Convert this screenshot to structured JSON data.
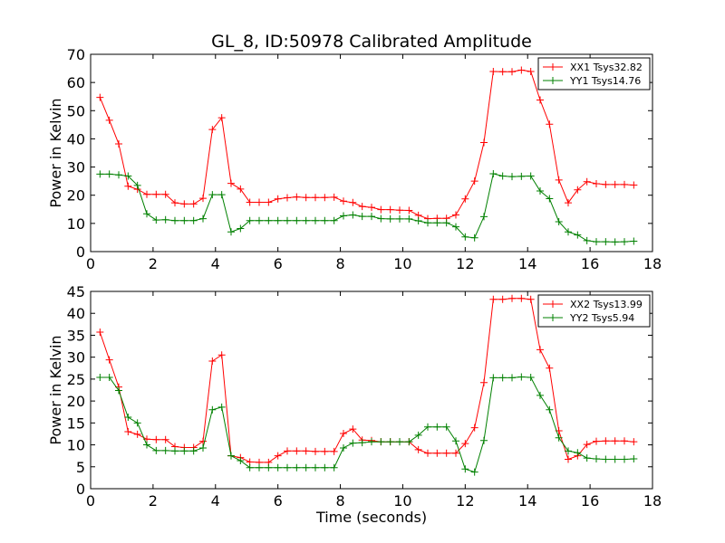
{
  "title": "GL_8, ID:50978 Calibrated Amplitude",
  "chart_data": [
    {
      "type": "line",
      "ylabel": "Power in Kelvin",
      "xlabel": "",
      "xlim": [
        0,
        18
      ],
      "ylim": [
        0,
        70
      ],
      "xticks": [
        "0",
        "2",
        "4",
        "6",
        "8",
        "10",
        "12",
        "14",
        "16",
        "18"
      ],
      "yticks": [
        "0",
        "10",
        "20",
        "30",
        "40",
        "50",
        "60",
        "70"
      ],
      "legend_position": "top-right",
      "x": [
        0.3,
        0.6,
        0.9,
        1.2,
        1.5,
        1.8,
        2.1,
        2.4,
        2.7,
        3.0,
        3.3,
        3.6,
        3.9,
        4.2,
        4.5,
        4.8,
        5.1,
        5.4,
        5.7,
        6.0,
        6.3,
        6.6,
        6.9,
        7.2,
        7.5,
        7.8,
        8.1,
        8.4,
        8.7,
        9.0,
        9.3,
        9.6,
        9.9,
        10.2,
        10.5,
        10.8,
        11.1,
        11.4,
        11.7,
        12.0,
        12.3,
        12.6,
        12.9,
        13.2,
        13.5,
        13.8,
        14.1,
        14.4,
        14.7,
        15.0,
        15.3,
        15.6,
        15.9,
        16.2,
        16.5,
        16.8,
        17.1,
        17.4
      ],
      "series": [
        {
          "name": "XX1 Tsys32.82",
          "color": "#ff0000",
          "values": [
            54.7,
            46.6,
            38.2,
            23.2,
            22.1,
            20.3,
            20.3,
            20.3,
            17.3,
            16.9,
            16.9,
            18.9,
            43.3,
            47.5,
            24.2,
            22.2,
            17.5,
            17.5,
            17.5,
            18.7,
            19.1,
            19.4,
            19.2,
            19.2,
            19.2,
            19.3,
            17.9,
            17.4,
            16.0,
            15.7,
            14.9,
            14.9,
            14.7,
            14.6,
            12.9,
            11.7,
            11.8,
            11.8,
            13.0,
            18.7,
            25.0,
            38.7,
            63.9,
            63.8,
            63.8,
            64.4,
            63.9,
            53.8,
            45.2,
            25.4,
            17.3,
            21.9,
            24.8,
            24.1,
            23.8,
            23.8,
            23.8,
            23.6
          ]
        },
        {
          "name": "YY1 Tsys14.76",
          "color": "#008000",
          "values": [
            27.5,
            27.5,
            27.2,
            26.8,
            23.5,
            13.4,
            11.2,
            11.3,
            11.0,
            11.0,
            11.0,
            11.7,
            20.2,
            20.2,
            7.0,
            8.2,
            11.0,
            11.0,
            11.0,
            11.0,
            11.0,
            11.0,
            11.0,
            11.0,
            11.0,
            11.0,
            12.7,
            13.0,
            12.5,
            12.5,
            11.7,
            11.6,
            11.6,
            11.6,
            10.9,
            10.2,
            10.2,
            10.2,
            8.8,
            5.2,
            4.9,
            12.4,
            27.6,
            26.8,
            26.6,
            26.7,
            26.8,
            21.5,
            18.8,
            10.6,
            7.0,
            5.9,
            3.9,
            3.5,
            3.5,
            3.4,
            3.5,
            3.7
          ]
        }
      ]
    },
    {
      "type": "line",
      "ylabel": "Power in Kelvin",
      "xlabel": "Time (seconds)",
      "xlim": [
        0,
        18
      ],
      "ylim": [
        0,
        45
      ],
      "xticks": [
        "0",
        "2",
        "4",
        "6",
        "8",
        "10",
        "12",
        "14",
        "16",
        "18"
      ],
      "yticks": [
        "0",
        "5",
        "10",
        "15",
        "20",
        "25",
        "30",
        "35",
        "40",
        "45"
      ],
      "legend_position": "top-right",
      "x": [
        0.3,
        0.6,
        0.9,
        1.2,
        1.5,
        1.8,
        2.1,
        2.4,
        2.7,
        3.0,
        3.3,
        3.6,
        3.9,
        4.2,
        4.5,
        4.8,
        5.1,
        5.4,
        5.7,
        6.0,
        6.3,
        6.6,
        6.9,
        7.2,
        7.5,
        7.8,
        8.1,
        8.4,
        8.7,
        9.0,
        9.3,
        9.6,
        9.9,
        10.2,
        10.5,
        10.8,
        11.1,
        11.4,
        11.7,
        12.0,
        12.3,
        12.6,
        12.9,
        13.2,
        13.5,
        13.8,
        14.1,
        14.4,
        14.7,
        15.0,
        15.3,
        15.6,
        15.9,
        16.2,
        16.5,
        16.8,
        17.1,
        17.4
      ],
      "series": [
        {
          "name": "XX2 Tsys13.99",
          "color": "#ff0000",
          "values": [
            35.7,
            29.4,
            23.2,
            13.0,
            12.4,
            11.3,
            11.2,
            11.2,
            9.6,
            9.4,
            9.4,
            10.8,
            29.1,
            30.5,
            7.5,
            7.1,
            6.1,
            6.0,
            6.0,
            7.5,
            8.6,
            8.6,
            8.6,
            8.5,
            8.5,
            8.5,
            12.6,
            13.6,
            11.1,
            11.0,
            10.7,
            10.7,
            10.7,
            10.7,
            8.9,
            8.1,
            8.1,
            8.1,
            8.1,
            10.3,
            13.9,
            24.2,
            43.2,
            43.2,
            43.4,
            43.4,
            43.2,
            31.7,
            27.5,
            13.2,
            6.7,
            7.5,
            10.1,
            10.8,
            10.9,
            10.9,
            10.9,
            10.7
          ]
        },
        {
          "name": "YY2 Tsys5.94",
          "color": "#008000",
          "values": [
            25.4,
            25.4,
            22.4,
            16.3,
            15.0,
            10.0,
            8.7,
            8.7,
            8.6,
            8.6,
            8.6,
            9.3,
            18.0,
            18.6,
            7.5,
            6.4,
            4.8,
            4.8,
            4.8,
            4.8,
            4.8,
            4.8,
            4.8,
            4.8,
            4.8,
            4.8,
            9.3,
            10.4,
            10.5,
            10.7,
            10.7,
            10.7,
            10.7,
            10.7,
            12.2,
            14.1,
            14.1,
            14.1,
            10.9,
            4.5,
            3.8,
            11.0,
            25.3,
            25.3,
            25.3,
            25.5,
            25.4,
            21.3,
            18.0,
            11.6,
            8.6,
            8.2,
            7.0,
            6.8,
            6.7,
            6.7,
            6.7,
            6.8
          ]
        }
      ]
    }
  ]
}
